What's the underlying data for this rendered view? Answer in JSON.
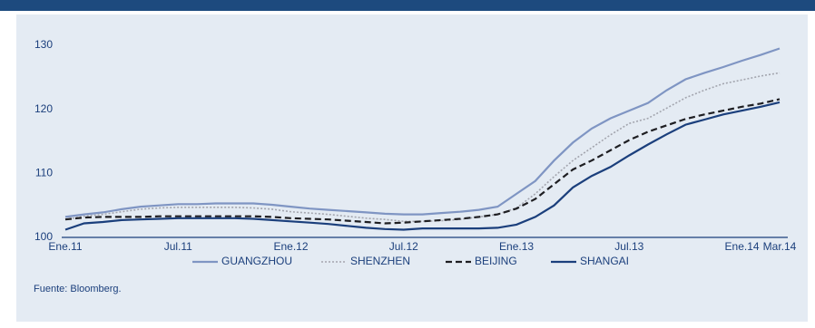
{
  "chart_data": {
    "type": "line",
    "categories": [
      "Ene.11",
      null,
      null,
      null,
      null,
      null,
      "Jul.11",
      null,
      null,
      null,
      null,
      null,
      "Ene.12",
      null,
      null,
      null,
      null,
      null,
      "Jul.12",
      null,
      null,
      null,
      null,
      null,
      "Ene.13",
      null,
      null,
      null,
      null,
      null,
      "Jul.13",
      null,
      null,
      null,
      null,
      null,
      "Ene.14",
      null,
      "Mar.14"
    ],
    "series": [
      {
        "name": "GUANGZHOU",
        "color": "#7f95c3",
        "line_style": "solid",
        "values": [
          103.2,
          103.6,
          103.9,
          104.4,
          104.8,
          105.0,
          105.2,
          105.2,
          105.3,
          105.3,
          105.3,
          105.1,
          104.8,
          104.5,
          104.3,
          104.1,
          103.9,
          103.7,
          103.6,
          103.6,
          103.8,
          104.0,
          104.3,
          104.8,
          106.8,
          108.8,
          112.0,
          114.8,
          117.0,
          118.6,
          119.8,
          121.0,
          123.0,
          124.7,
          125.7,
          126.6,
          127.6,
          128.5,
          129.5
        ]
      },
      {
        "name": "SHENZHEN",
        "color": "#a3a5ae",
        "line_style": "dotted",
        "values": [
          102.8,
          103.3,
          103.6,
          104.0,
          104.4,
          104.6,
          104.7,
          104.7,
          104.7,
          104.7,
          104.6,
          104.4,
          104.0,
          103.8,
          103.6,
          103.3,
          103.0,
          102.8,
          102.5,
          102.5,
          102.6,
          102.8,
          103.2,
          103.6,
          104.6,
          106.8,
          109.5,
          112.0,
          114.0,
          116.0,
          117.8,
          118.6,
          120.2,
          121.8,
          123.0,
          124.0,
          124.6,
          125.2,
          125.7
        ]
      },
      {
        "name": "BEIJING",
        "color": "#1e1e22",
        "line_style": "dashed",
        "values": [
          102.8,
          103.1,
          103.2,
          103.2,
          103.2,
          103.3,
          103.3,
          103.3,
          103.3,
          103.3,
          103.3,
          103.2,
          103.0,
          102.9,
          102.8,
          102.6,
          102.4,
          102.2,
          102.3,
          102.5,
          102.7,
          102.9,
          103.2,
          103.6,
          104.5,
          106.0,
          108.3,
          110.6,
          112.0,
          113.6,
          115.2,
          116.5,
          117.5,
          118.5,
          119.2,
          119.8,
          120.4,
          120.9,
          121.6
        ]
      },
      {
        "name": "SHANGAI",
        "color": "#1b3f7c",
        "line_style": "solid",
        "values": [
          101.2,
          102.2,
          102.4,
          102.7,
          102.8,
          102.9,
          103.0,
          103.0,
          103.0,
          103.0,
          102.9,
          102.7,
          102.5,
          102.3,
          102.1,
          101.8,
          101.5,
          101.3,
          101.2,
          101.4,
          101.4,
          101.4,
          101.4,
          101.5,
          102.0,
          103.2,
          105.0,
          107.8,
          109.6,
          111.0,
          112.8,
          114.5,
          116.1,
          117.6,
          118.4,
          119.2,
          119.8,
          120.4,
          121.1
        ]
      }
    ],
    "ylim": [
      100,
      130
    ],
    "yticks": [
      100,
      110,
      120,
      130
    ],
    "grid": false,
    "legend": "bottom",
    "source": "Fuente: Bloomberg."
  }
}
